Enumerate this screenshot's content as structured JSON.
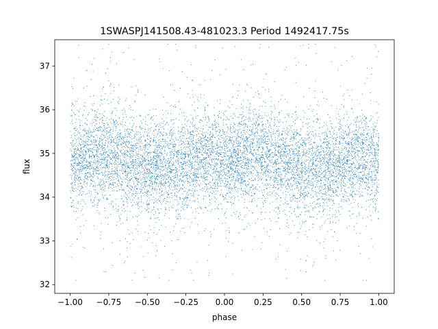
{
  "chart_data": {
    "type": "scatter",
    "title": "1SWASPJ141508.43-481023.3 Period 1492417.75s",
    "xlabel": "phase",
    "ylabel": "flux",
    "xlim": [
      -1.1,
      1.1
    ],
    "ylim": [
      31.8,
      37.6
    ],
    "xticks": [
      -1.0,
      -0.75,
      -0.5,
      -0.25,
      0.0,
      0.25,
      0.5,
      0.75,
      1.0
    ],
    "xtick_labels": [
      "−1.00",
      "−0.75",
      "−0.50",
      "−0.25",
      "0.00",
      "0.25",
      "0.50",
      "0.75",
      "1.00"
    ],
    "yticks": [
      32,
      33,
      34,
      35,
      36,
      37
    ],
    "ytick_labels": [
      "32",
      "33",
      "34",
      "35",
      "36",
      "37"
    ],
    "grid": false,
    "series": [
      {
        "color": "#1f77b4",
        "marker": "dot",
        "phase_range": [
          -1.0,
          1.0
        ],
        "flux_mean_profile": {
          "x": [
            -1.0,
            -0.9,
            -0.8,
            -0.7,
            -0.6,
            -0.5,
            -0.4,
            -0.3,
            -0.2,
            -0.1,
            0.0,
            0.1,
            0.2,
            0.3,
            0.4,
            0.5,
            0.6,
            0.7,
            0.8,
            0.9,
            1.0
          ],
          "y": [
            34.8,
            34.9,
            35.0,
            34.9,
            34.8,
            34.6,
            34.7,
            34.7,
            34.9,
            34.9,
            34.8,
            34.9,
            35.0,
            34.9,
            34.8,
            34.6,
            34.7,
            34.7,
            34.9,
            34.9,
            34.8
          ]
        },
        "flux_core_spread": [
          33.8,
          36.0
        ],
        "flux_outlier_range": [
          32.1,
          37.5
        ]
      }
    ]
  }
}
